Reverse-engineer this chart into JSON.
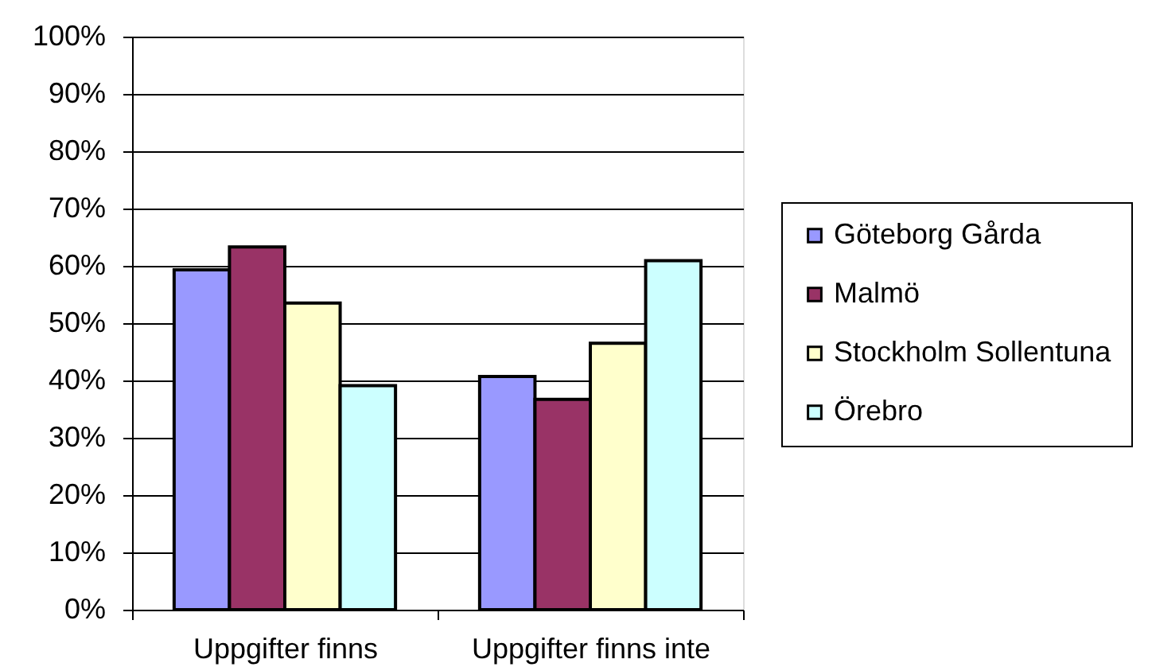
{
  "chart_data": {
    "type": "bar",
    "categories": [
      "Uppgifter finns",
      "Uppgifter finns inte"
    ],
    "series": [
      {
        "name": "Göteborg Gårda",
        "color": "#9999ff",
        "values": [
          59.3,
          40.7
        ]
      },
      {
        "name": "Malmö",
        "color": "#993366",
        "values": [
          63.3,
          36.7
        ]
      },
      {
        "name": "Stockholm Sollentuna",
        "color": "#ffffcc",
        "values": [
          53.5,
          46.5
        ]
      },
      {
        "name": "Örebro",
        "color": "#ccffff",
        "values": [
          39.1,
          60.9
        ]
      }
    ],
    "ylim": [
      0,
      100
    ],
    "yticks": [
      {
        "value": 0,
        "label": "0%"
      },
      {
        "value": 10,
        "label": "10%"
      },
      {
        "value": 20,
        "label": "20%"
      },
      {
        "value": 30,
        "label": "30%"
      },
      {
        "value": 40,
        "label": "40%"
      },
      {
        "value": 50,
        "label": "50%"
      },
      {
        "value": 60,
        "label": "60%"
      },
      {
        "value": 70,
        "label": "70%"
      },
      {
        "value": 80,
        "label": "80%"
      },
      {
        "value": 90,
        "label": "90%"
      },
      {
        "value": 100,
        "label": "100%"
      }
    ],
    "grid": "y",
    "legend": "right"
  }
}
